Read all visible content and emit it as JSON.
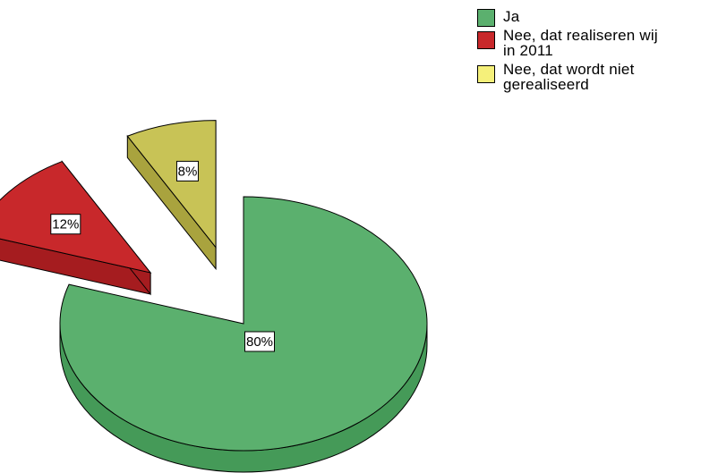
{
  "chart_data": {
    "type": "pie",
    "title": "",
    "categories": [
      "Ja",
      "Nee, dat realiseren wij in 2011",
      "Nee, dat wordt niet gerealiseerd"
    ],
    "values": [
      80,
      12,
      8
    ],
    "labels": [
      "80%",
      "12%",
      "8%"
    ],
    "colors": [
      "#5bb06e",
      "#c8282b",
      "#c8c356"
    ],
    "side_colors": [
      "#459a58",
      "#a51c1f",
      "#a9a33e"
    ],
    "exploded": [
      false,
      true,
      true
    ],
    "three_d": true,
    "legend_position": "top-right"
  },
  "legend": [
    {
      "text": "Ja",
      "color": "#5bb06e"
    },
    {
      "text": "Nee, dat realiseren wij\nin 2011",
      "color": "#c8282b"
    },
    {
      "text": "Nee, dat wordt niet\ngerealiseerd",
      "color": "#f5f07a"
    }
  ]
}
